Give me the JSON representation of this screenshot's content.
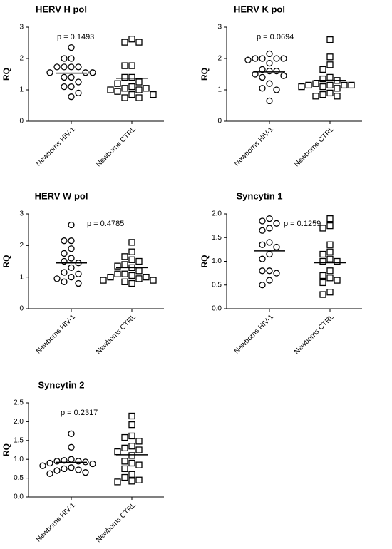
{
  "chart_data": [
    {
      "type": "dot",
      "title": "HERV H pol",
      "annotation": "p = 0.1493",
      "ylabel": "RQ",
      "categories": [
        "Newborns HIV-1",
        "Newborns CTRL"
      ],
      "ylim": [
        0,
        3
      ],
      "yticks": [
        0,
        1,
        2,
        3
      ],
      "groups": [
        {
          "marker": "circle",
          "color": "#000000",
          "mean": 1.53,
          "values": [
            2.35,
            2.0,
            2.0,
            1.73,
            1.73,
            1.73,
            1.73,
            1.55,
            1.55,
            1.55,
            1.4,
            1.4,
            1.25,
            1.1,
            1.1,
            0.9,
            0.78
          ]
        },
        {
          "marker": "square",
          "color": "#000000",
          "mean": 1.37,
          "values": [
            2.62,
            2.52,
            2.52,
            1.77,
            1.77,
            1.4,
            1.4,
            1.25,
            1.2,
            1.1,
            1.05,
            1.05,
            1.0,
            1.0,
            0.95,
            0.85,
            0.85,
            0.75,
            0.75
          ]
        }
      ]
    },
    {
      "type": "dot",
      "title": "HERV K pol",
      "annotation": "p = 0.0694",
      "ylabel": "RQ",
      "categories": [
        "Newborns HIV-1",
        "Newborns CTRL"
      ],
      "ylim": [
        0,
        3
      ],
      "yticks": [
        0,
        1,
        2,
        3
      ],
      "groups": [
        {
          "marker": "circle",
          "color": "#000000",
          "mean": 1.57,
          "values": [
            2.15,
            2.0,
            2.0,
            2.0,
            2.0,
            1.95,
            1.85,
            1.65,
            1.6,
            1.6,
            1.5,
            1.45,
            1.4,
            1.2,
            1.05,
            1.0,
            0.65
          ]
        },
        {
          "marker": "square",
          "color": "#000000",
          "mean": 1.3,
          "values": [
            2.6,
            2.05,
            1.8,
            1.65,
            1.4,
            1.35,
            1.3,
            1.2,
            1.15,
            1.15,
            1.15,
            1.15,
            1.1,
            1.1,
            1.05,
            0.9,
            0.85,
            0.8,
            0.8
          ]
        }
      ]
    },
    {
      "type": "dot",
      "title": "HERV W pol",
      "annotation": "p = 0.4785",
      "ylabel": "RQ",
      "categories": [
        "Newborns HIV-1",
        "Newborns CTRL"
      ],
      "ylim": [
        0,
        3
      ],
      "yticks": [
        0,
        1,
        2,
        3
      ],
      "groups": [
        {
          "marker": "circle",
          "color": "#000000",
          "mean": 1.45,
          "values": [
            2.65,
            2.15,
            2.15,
            1.9,
            1.75,
            1.6,
            1.5,
            1.45,
            1.3,
            1.15,
            1.1,
            1.0,
            0.95,
            0.85,
            0.8
          ]
        },
        {
          "marker": "square",
          "color": "#000000",
          "mean": 1.3,
          "values": [
            2.1,
            1.8,
            1.65,
            1.55,
            1.5,
            1.4,
            1.35,
            1.3,
            1.2,
            1.1,
            1.1,
            1.05,
            1.0,
            1.0,
            0.95,
            0.9,
            0.9,
            0.85,
            0.8
          ]
        }
      ]
    },
    {
      "type": "dot",
      "title": "Syncytin 1",
      "annotation": "p = 0.1259",
      "ylabel": "RQ",
      "categories": [
        "Newborns HIV-1",
        "Newborns CTRL"
      ],
      "ylim": [
        0,
        2
      ],
      "yticks": [
        {
          "value": 0,
          "label": "0.0"
        },
        0.5,
        {
          "value": 1,
          "label": "1.0"
        },
        1.5,
        {
          "value": 2,
          "label": "2.0"
        }
      ],
      "groups": [
        {
          "marker": "circle",
          "color": "#000000",
          "mean": 1.22,
          "values": [
            1.9,
            1.85,
            1.8,
            1.7,
            1.65,
            1.4,
            1.35,
            1.3,
            1.15,
            1.05,
            0.8,
            0.8,
            0.75,
            0.6,
            0.5
          ]
        },
        {
          "marker": "square",
          "color": "#000000",
          "mean": 0.97,
          "values": [
            1.9,
            1.75,
            1.7,
            1.35,
            1.2,
            1.15,
            1.05,
            1.0,
            1.0,
            0.8,
            0.7,
            0.65,
            0.6,
            0.55,
            0.35,
            0.3
          ]
        }
      ]
    },
    {
      "type": "dot",
      "title": "Syncytin 2",
      "annotation": "p = 0.2317",
      "ylabel": "RQ",
      "categories": [
        "Newborns HIV-1",
        "Newborns CTRL"
      ],
      "ylim": [
        0,
        2.5
      ],
      "yticks": [
        {
          "value": 0,
          "label": "0.0"
        },
        0.5,
        {
          "value": 1,
          "label": "1.0"
        },
        1.5,
        {
          "value": 2,
          "label": "2.0"
        },
        2.5
      ],
      "groups": [
        {
          "marker": "circle",
          "color": "#000000",
          "mean": 0.92,
          "values": [
            1.68,
            1.32,
            1.0,
            0.97,
            0.95,
            0.95,
            0.93,
            0.9,
            0.88,
            0.83,
            0.78,
            0.75,
            0.72,
            0.7,
            0.65,
            0.62
          ]
        },
        {
          "marker": "square",
          "color": "#000000",
          "mean": 1.12,
          "values": [
            2.15,
            1.92,
            1.62,
            1.58,
            1.48,
            1.35,
            1.3,
            1.25,
            1.2,
            1.1,
            0.95,
            0.9,
            0.85,
            0.75,
            0.6,
            0.52,
            0.45,
            0.42,
            0.4
          ]
        }
      ]
    }
  ]
}
